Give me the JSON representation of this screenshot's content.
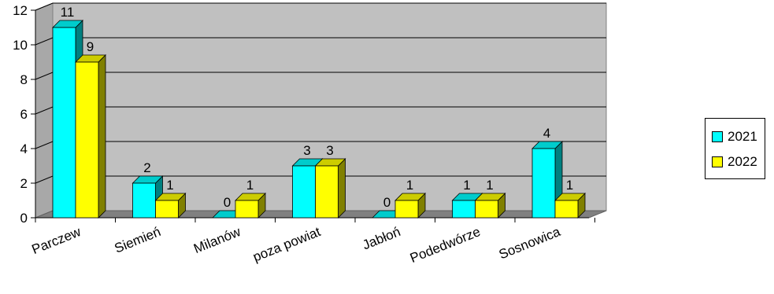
{
  "chart_data": {
    "type": "bar",
    "categories": [
      "Parczew",
      "Siemień",
      "Milanów",
      "poza powiat",
      "Jabłoń",
      "Podedwórze",
      "Sosnowica"
    ],
    "series": [
      {
        "name": "2021",
        "values": [
          11,
          2,
          0,
          3,
          0,
          1,
          4
        ],
        "color": "#00ffff"
      },
      {
        "name": "2022",
        "values": [
          9,
          1,
          1,
          3,
          1,
          1,
          1
        ],
        "color": "#ffff00"
      }
    ],
    "ylim": [
      0,
      12
    ],
    "yticks": [
      "0",
      "2",
      "4",
      "6",
      "8",
      "10",
      "12"
    ],
    "grid": true,
    "legend_position": "right",
    "style": "3d-clustered-column",
    "plot_color": "#c0c0c0"
  }
}
